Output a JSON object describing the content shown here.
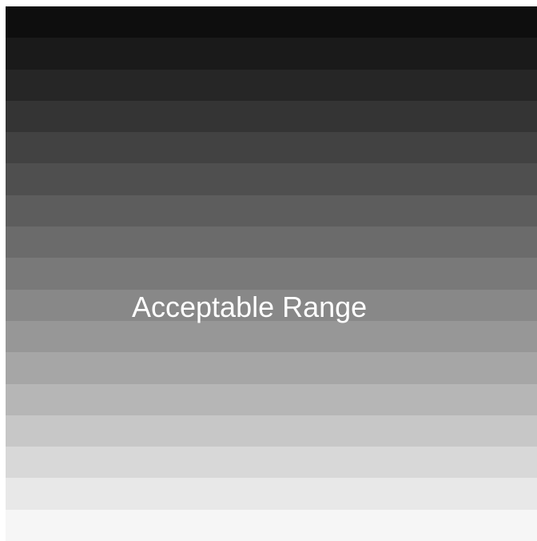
{
  "label": {
    "text": "Acceptable Range",
    "color": "#ffffff"
  },
  "gradient": {
    "direction": "top-to-bottom",
    "band_colors": [
      "#0e0e0e",
      "#1a1a1a",
      "#262626",
      "#343434",
      "#424242",
      "#4f4f4f",
      "#5d5d5d",
      "#6b6b6b",
      "#797979",
      "#888888",
      "#979797",
      "#a6a6a6",
      "#b6b6b6",
      "#c7c7c7",
      "#d8d8d8",
      "#e8e8e8",
      "#f6f6f6"
    ]
  }
}
